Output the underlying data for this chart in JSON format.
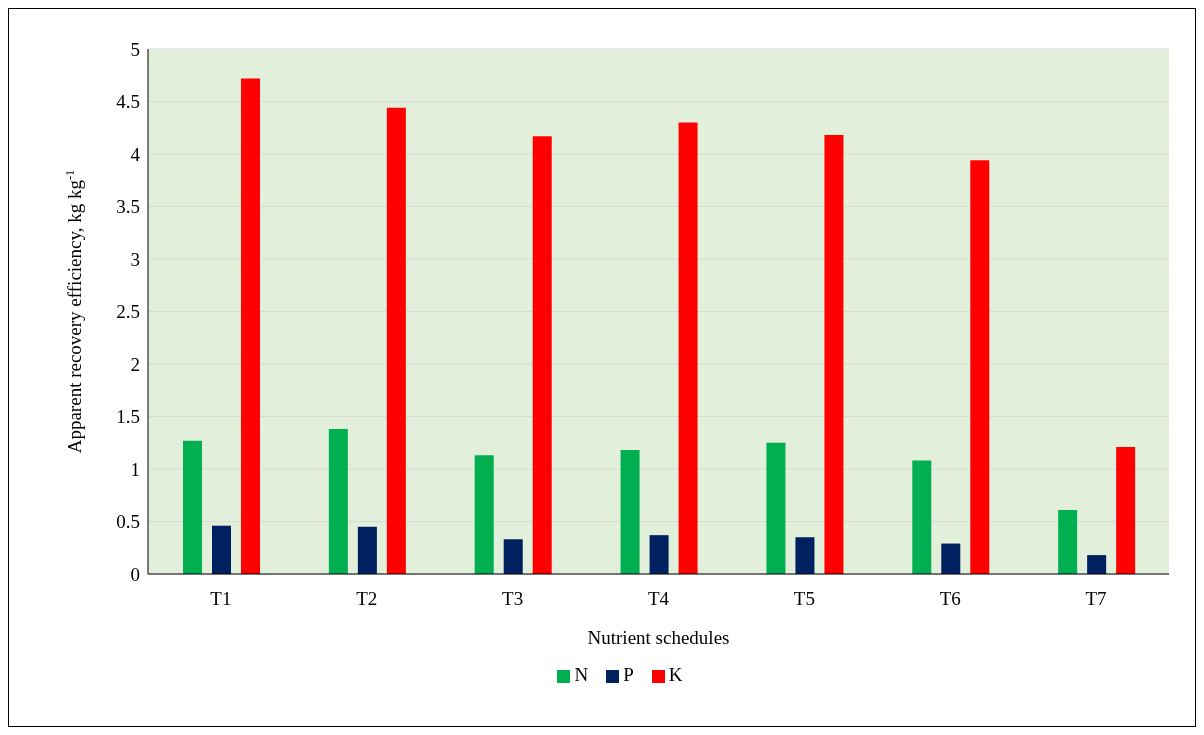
{
  "chart_data": {
    "type": "bar",
    "xlabel": "Nutrient schedules",
    "ylabel": "Apparent recovery efficiency, kg kg$^{-1}$",
    "categories": [
      "T1",
      "T2",
      "T3",
      "T4",
      "T5",
      "T6",
      "T7"
    ],
    "series": [
      {
        "name": "N",
        "color": "#00b050",
        "values": [
          1.27,
          1.38,
          1.13,
          1.18,
          1.25,
          1.08,
          0.61
        ]
      },
      {
        "name": "P",
        "color": "#002060",
        "values": [
          0.46,
          0.45,
          0.33,
          0.37,
          0.35,
          0.29,
          0.18
        ]
      },
      {
        "name": "K",
        "color": "#ff0000",
        "values": [
          4.72,
          4.44,
          4.17,
          4.3,
          4.18,
          3.94,
          1.21
        ]
      }
    ],
    "ylim": [
      0,
      5
    ],
    "yticks": [
      0,
      0.5,
      1,
      1.5,
      2,
      2.5,
      3,
      3.5,
      4,
      4.5,
      5
    ],
    "grid": "y",
    "legend": "bottom"
  }
}
